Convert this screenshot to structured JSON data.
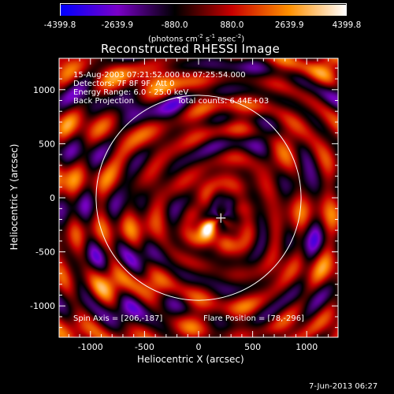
{
  "colorbar": {
    "ticks": [
      "-4399.8",
      "-2639.9",
      "-880.0",
      "880.0",
      "2639.9",
      "4399.8"
    ],
    "tick_values": [
      -4399.8,
      -2639.9,
      -880.0,
      880.0,
      2639.9,
      4399.8
    ],
    "unit_main": "(photons cm",
    "unit_exp1": "-2",
    "unit_mid": " s",
    "unit_exp2": "-1",
    "unit_mid2": " asec",
    "unit_exp3": "-2",
    "unit_end": ")",
    "colors": [
      "#0000ff",
      "#7a00c8",
      "#000000",
      "#c80000",
      "#ff9000",
      "#ffffff"
    ]
  },
  "chart_data": {
    "type": "heatmap",
    "title": "Reconstructed RHESSI Image",
    "xlabel": "Heliocentric X (arcsec)",
    "ylabel": "Heliocentric Y (arcsec)",
    "xlim": [
      -1290,
      1290
    ],
    "ylim": [
      -1290,
      1290
    ],
    "xticks": [
      -1000,
      -500,
      0,
      500,
      1000
    ],
    "yticks": [
      -1000,
      -500,
      0,
      500,
      1000
    ],
    "solar_limb_radius": 948,
    "spin_axis": [
      206,
      -187
    ],
    "flare_position": [
      78,
      -296
    ],
    "vmin": -4399.8,
    "vmax": 4399.8,
    "annotations": {
      "time": "15-Aug-2003 07:21:52.000 to 07:25:54.000",
      "detectors": "Detectors: 7F 8F 9F, Att 0",
      "energy": "Energy Range: 6.0 - 25.0 keV",
      "method": "Back Projection",
      "counts": "Total counts: 6.44E+03",
      "spin_axis_label": "Spin Axis = [206,-187]",
      "flare_label": "Flare Position = [78,-296]"
    }
  },
  "footer": {
    "date": "7-Jun-2013 06:27"
  }
}
